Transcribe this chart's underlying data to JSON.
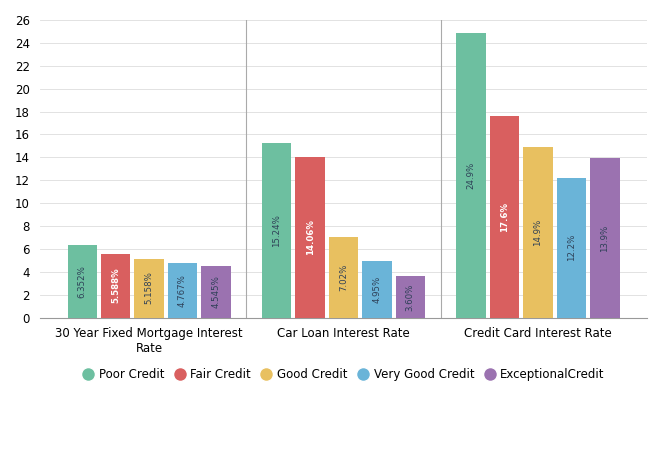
{
  "categories": [
    "30 Year Fixed Mortgage Interest\nRate",
    "Car Loan Interest Rate",
    "Credit Card Interest Rate"
  ],
  "series": {
    "Poor Credit": [
      6.352,
      15.24,
      24.9
    ],
    "Fair Credit": [
      5.588,
      14.06,
      17.6
    ],
    "Good Credit": [
      5.158,
      7.02,
      14.9
    ],
    "Very Good Credit": [
      4.767,
      4.95,
      12.2
    ],
    "ExceptionalCredit": [
      4.545,
      3.6,
      13.9
    ]
  },
  "labels": {
    "Poor Credit": [
      "6.352%",
      "15.24%",
      "24.9%"
    ],
    "Fair Credit": [
      "5.588%",
      "14.06%",
      "17.6%"
    ],
    "Good Credit": [
      "5.158%",
      "7.02%",
      "14.9%"
    ],
    "Very Good Credit": [
      "4.767%",
      "4.95%",
      "12.2%"
    ],
    "ExceptionalCredit": [
      "4.545%",
      "3.60%",
      "13.9%"
    ]
  },
  "label_colors": {
    "Poor Credit": "#2E4057",
    "Fair Credit": "#FFFFFF",
    "Good Credit": "#2E4057",
    "Very Good Credit": "#2E4057",
    "ExceptionalCredit": "#2E4057"
  },
  "label_bold": {
    "Poor Credit": false,
    "Fair Credit": true,
    "Good Credit": false,
    "Very Good Credit": false,
    "ExceptionalCredit": false
  },
  "colors": {
    "Poor Credit": "#6DBFA0",
    "Fair Credit": "#D95F5F",
    "Good Credit": "#E8C060",
    "Very Good Credit": "#6AB4D8",
    "ExceptionalCredit": "#9B72B0"
  },
  "legend_order": [
    "Poor Credit",
    "Fair Credit",
    "Good Credit",
    "Very Good Credit",
    "ExceptionalCredit"
  ],
  "ylim": [
    0,
    26
  ],
  "yticks": [
    0,
    2,
    4,
    6,
    8,
    10,
    12,
    14,
    16,
    18,
    20,
    22,
    24,
    26
  ],
  "bar_width": 0.055,
  "group_positions": [
    0.18,
    0.5,
    0.82
  ],
  "figsize": [
    6.69,
    4.49
  ],
  "dpi": 100,
  "bg_color": "#FFFFFF",
  "grid_color": "#DDDDDD",
  "label_fontsize": 6.2,
  "axis_fontsize": 8.5,
  "legend_fontsize": 8.5
}
